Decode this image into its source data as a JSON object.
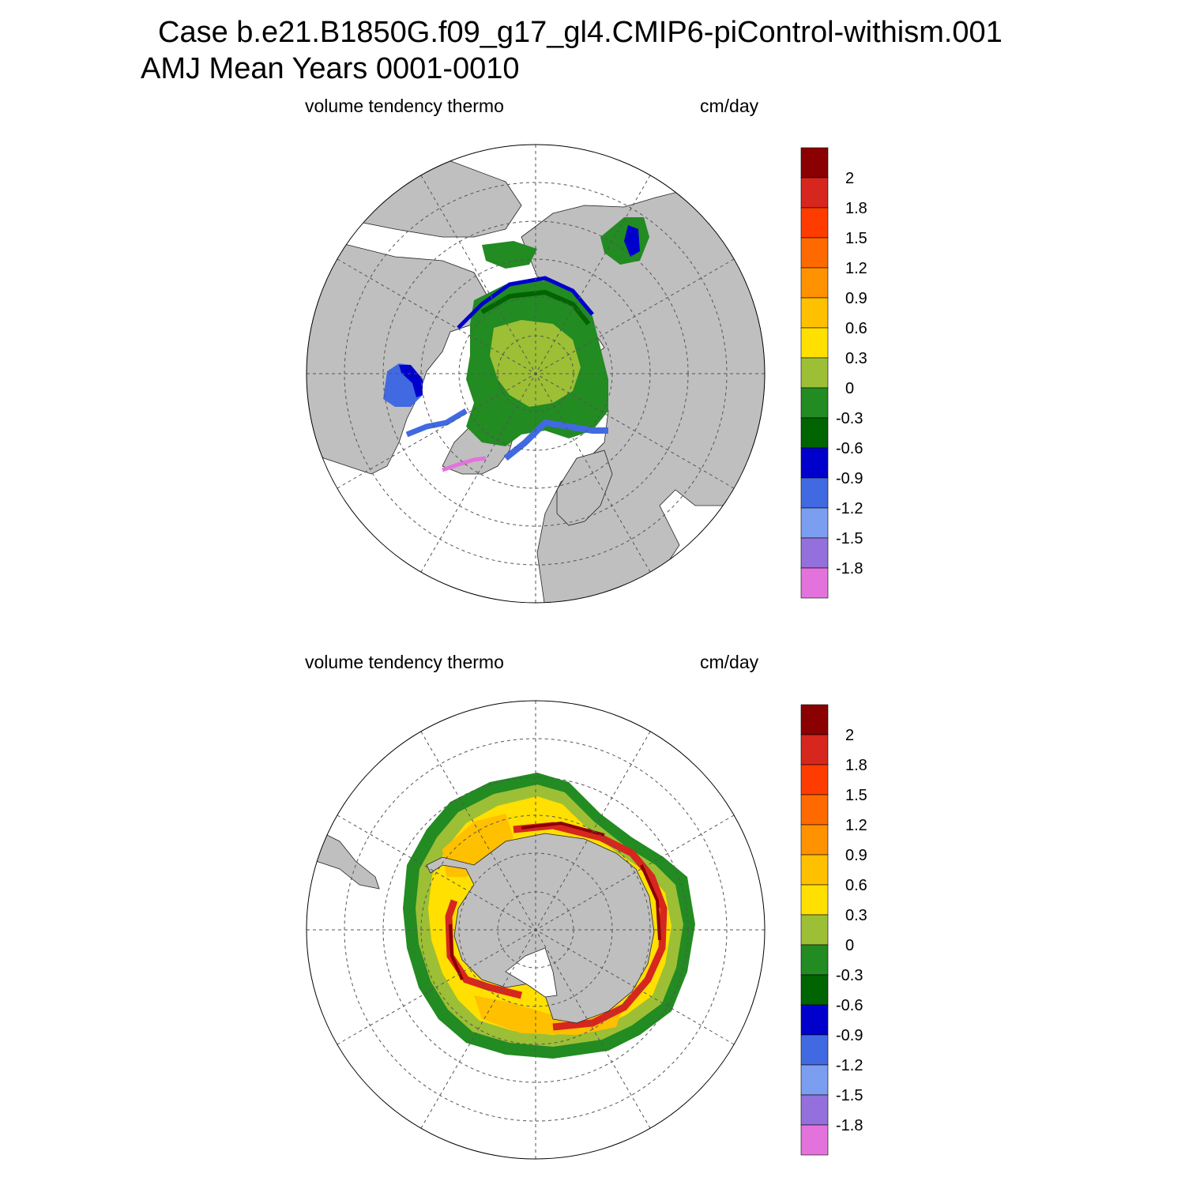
{
  "header": {
    "line1": "Case b.e21.B1850G.f09_g17_gl4.CMIP6-piControl-withism.001",
    "line2": "AMJ Mean   Years 0001-0010"
  },
  "panels": [
    {
      "hemisphere": "north",
      "left_label": "volume tendency thermo",
      "right_label": "cm/day"
    },
    {
      "hemisphere": "south",
      "left_label": "volume tendency thermo",
      "right_label": "cm/day"
    }
  ],
  "colorbar": {
    "tick_labels": [
      "2",
      "1.8",
      "1.5",
      "1.2",
      "0.9",
      "0.6",
      "0.3",
      "0",
      "-0.3",
      "-0.6",
      "-0.9",
      "-1.2",
      "-1.5",
      "-1.8"
    ],
    "colors": [
      "#8b0000",
      "#d7261e",
      "#ff3c00",
      "#ff6a00",
      "#ff9200",
      "#ffc000",
      "#ffe000",
      "#9cbf35",
      "#228b22",
      "#006400",
      "#0000cd",
      "#4169e1",
      "#7b9ef0",
      "#9370db",
      "#e472dc"
    ]
  },
  "colors": {
    "land": "#bfbfbf",
    "ocean": "#ffffff",
    "grid": "#555555"
  }
}
